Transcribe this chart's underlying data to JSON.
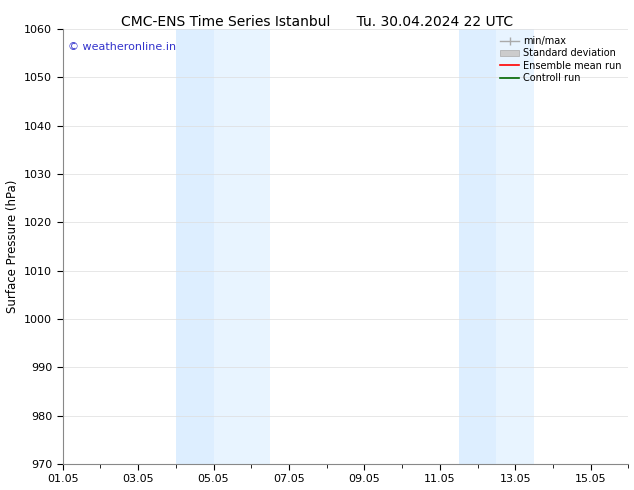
{
  "title_left": "CMC-ENS Time Series Istanbul",
  "title_right": "Tu. 30.04.2024 22 UTC",
  "ylabel": "Surface Pressure (hPa)",
  "ylim": [
    970,
    1060
  ],
  "yticks": [
    970,
    980,
    990,
    1000,
    1010,
    1020,
    1030,
    1040,
    1050,
    1060
  ],
  "xlim": [
    0,
    15
  ],
  "xtick_labels": [
    "01.05",
    "03.05",
    "05.05",
    "07.05",
    "09.05",
    "11.05",
    "13.05",
    "15.05"
  ],
  "xtick_positions": [
    0,
    2,
    4,
    6,
    8,
    10,
    12,
    14
  ],
  "shaded_bands": [
    {
      "xstart": 3.0,
      "xend": 4.0,
      "color": "#ddeeff"
    },
    {
      "xstart": 4.0,
      "xend": 5.5,
      "color": "#e8f4ff"
    },
    {
      "xstart": 10.5,
      "xend": 11.5,
      "color": "#ddeeff"
    },
    {
      "xstart": 11.5,
      "xend": 12.5,
      "color": "#e8f4ff"
    }
  ],
  "watermark": "© weatheronline.in",
  "watermark_color": "#3333cc",
  "legend_items": [
    {
      "label": "min/max",
      "color": "#aaaaaa"
    },
    {
      "label": "Standard deviation",
      "color": "#cccccc"
    },
    {
      "label": "Ensemble mean run",
      "color": "#ff0000"
    },
    {
      "label": "Controll run",
      "color": "#006600"
    }
  ],
  "bg_color": "#ffffff",
  "grid_color": "#dddddd",
  "title_fontsize": 10,
  "label_fontsize": 8.5,
  "tick_fontsize": 8
}
